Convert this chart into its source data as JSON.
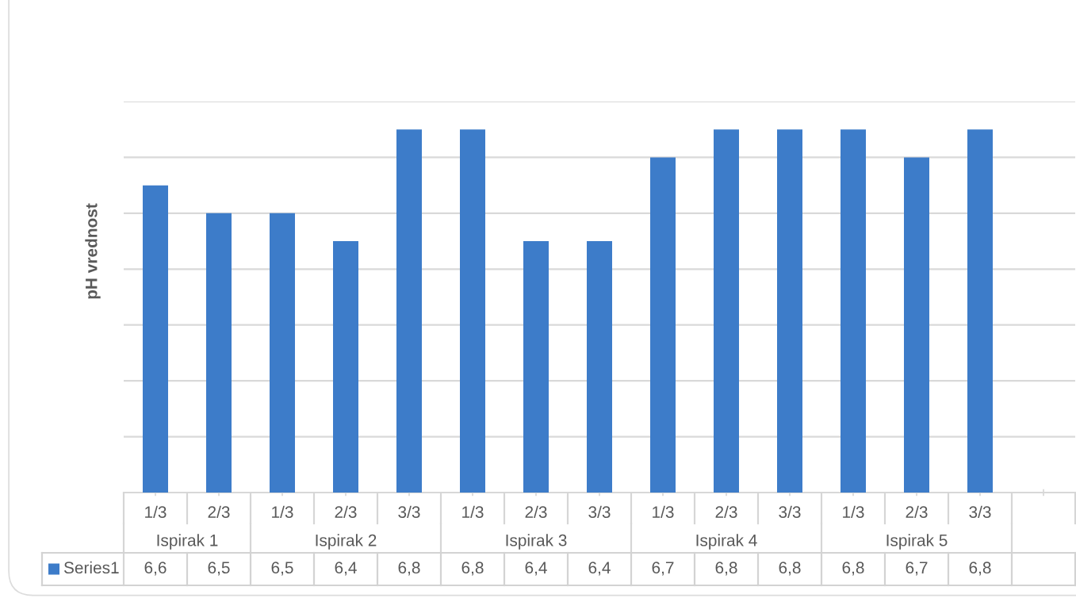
{
  "chart_data": {
    "type": "bar",
    "ylabel": "pH vrednost",
    "categories": [
      "1/3",
      "2/3",
      "1/3",
      "2/3",
      "3/3",
      "1/3",
      "2/3",
      "3/3",
      "1/3",
      "2/3",
      "3/3",
      "1/3",
      "2/3",
      "3/3",
      null
    ],
    "series": [
      {
        "name": "Series1",
        "color": "#3d7cc9",
        "values": [
          6.6,
          6.5,
          6.5,
          6.4,
          6.8,
          6.8,
          6.4,
          6.4,
          6.7,
          6.8,
          6.8,
          6.8,
          6.7,
          6.8,
          null
        ],
        "value_labels": [
          "6,6",
          "6,5",
          "6,5",
          "6,4",
          "6,8",
          "6,8",
          "6,4",
          "6,4",
          "6,7",
          "6,8",
          "6,8",
          "6,8",
          "6,7",
          "6,8",
          null
        ]
      }
    ],
    "annotations": [
      "Ispirak 1",
      "Ispirak 2",
      "Ispirak 3",
      "Ispirak 4",
      "Ispirak 5"
    ],
    "ylim": [
      5.5,
      6.9
    ],
    "yticks": [
      5.5,
      5.7,
      5.9,
      6.1,
      6.3,
      6.5,
      6.7,
      6.9
    ],
    "grid": "y",
    "tick_labels": "x",
    "legend": "bottom"
  }
}
